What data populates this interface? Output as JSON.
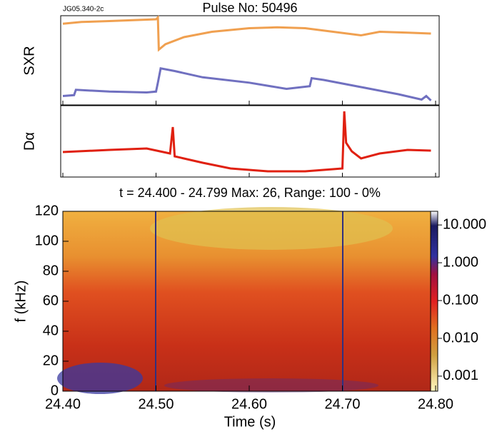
{
  "header": {
    "id": "JG05.340-2c",
    "title": "Pulse No: 50496"
  },
  "chart_data": [
    {
      "type": "line",
      "ylabel": "SXR",
      "xlim": [
        24.4,
        24.8
      ],
      "ylim": [
        0,
        1
      ],
      "series": [
        {
          "color": "#f0a050",
          "x": [
            24.4,
            24.42,
            24.45,
            24.5,
            24.502,
            24.503,
            24.51,
            24.53,
            24.56,
            24.6,
            24.63,
            24.66,
            24.69,
            24.72,
            24.74,
            24.77,
            24.795
          ],
          "values": [
            0.91,
            0.93,
            0.94,
            0.96,
            0.98,
            0.62,
            0.68,
            0.76,
            0.82,
            0.86,
            0.87,
            0.86,
            0.82,
            0.78,
            0.82,
            0.81,
            0.8
          ]
        },
        {
          "color": "#7070c0",
          "x": [
            24.4,
            24.412,
            24.414,
            24.45,
            24.49,
            24.5,
            24.502,
            24.505,
            24.52,
            24.55,
            24.6,
            24.64,
            24.665,
            24.667,
            24.68,
            24.72,
            24.76,
            24.785,
            24.79,
            24.795
          ],
          "values": [
            0.1,
            0.11,
            0.17,
            0.15,
            0.14,
            0.15,
            0.25,
            0.41,
            0.38,
            0.31,
            0.25,
            0.18,
            0.21,
            0.3,
            0.28,
            0.2,
            0.12,
            0.06,
            0.1,
            0.05
          ]
        }
      ]
    },
    {
      "type": "line",
      "ylabel": "Dα",
      "xlim": [
        24.4,
        24.8
      ],
      "ylim": [
        0,
        1
      ],
      "series": [
        {
          "color": "#e02010",
          "x": [
            24.4,
            24.45,
            24.49,
            24.515,
            24.518,
            24.52,
            24.55,
            24.58,
            24.62,
            24.66,
            24.69,
            24.7,
            24.702,
            24.704,
            24.71,
            24.72,
            24.74,
            24.77,
            24.795
          ],
          "values": [
            0.35,
            0.38,
            0.4,
            0.33,
            0.7,
            0.29,
            0.2,
            0.12,
            0.08,
            0.08,
            0.11,
            0.12,
            0.92,
            0.48,
            0.36,
            0.26,
            0.33,
            0.38,
            0.37
          ]
        }
      ]
    },
    {
      "type": "spectrogram",
      "title": "t = 24.400 - 24.799 Max: 26, Range: 100 - 0%",
      "xlabel": "Time (s)",
      "ylabel": "f (kHz)",
      "xlim": [
        24.4,
        24.8
      ],
      "xticks": [
        {
          "value": 24.4,
          "label": "24.40"
        },
        {
          "value": 24.5,
          "label": "24.50"
        },
        {
          "value": 24.6,
          "label": "24.60"
        },
        {
          "value": 24.7,
          "label": "24.70"
        },
        {
          "value": 24.8,
          "label": "24.80"
        }
      ],
      "ylim": [
        0,
        120
      ],
      "yticks": [
        0,
        20,
        40,
        60,
        80,
        100,
        120
      ],
      "colorbar": {
        "scale": "log",
        "lim": [
          0.0004,
          23
        ],
        "ticks": [
          {
            "value": 10,
            "label": "10.000"
          },
          {
            "value": 1,
            "label": "1.000"
          },
          {
            "value": 0.1,
            "label": "0.100"
          },
          {
            "value": 0.01,
            "label": "0.010"
          },
          {
            "value": 0.001,
            "label": "0.001"
          }
        ]
      }
    }
  ]
}
